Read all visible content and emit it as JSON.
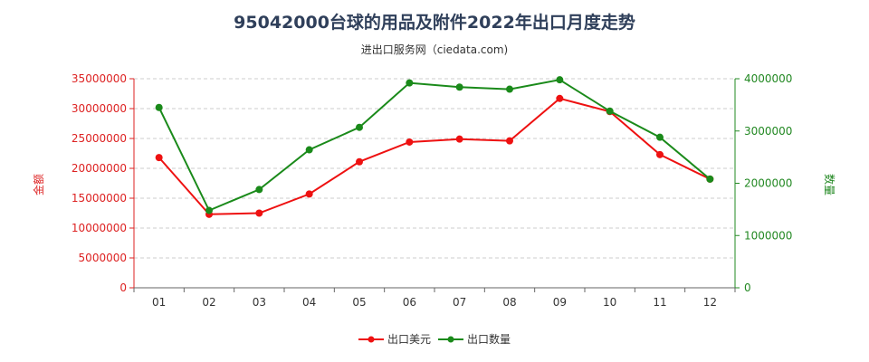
{
  "chart_data": {
    "type": "line",
    "title": "95042000台球的用品及附件2022年出口月度走势",
    "subtitle": "进出口服务网（ciedata.com)",
    "categories": [
      "01",
      "02",
      "03",
      "04",
      "05",
      "06",
      "07",
      "08",
      "09",
      "10",
      "11",
      "12"
    ],
    "y_left": {
      "label": "金额",
      "range": [
        0,
        35000000
      ],
      "ticks": [
        "0",
        "5000000",
        "10000000",
        "15000000",
        "20000000",
        "25000000",
        "30000000",
        "35000000"
      ],
      "color": "#dd2222"
    },
    "y_right": {
      "label": "数量",
      "range": [
        0,
        4000000
      ],
      "ticks": [
        "0",
        "1000000",
        "2000000",
        "3000000",
        "4000000"
      ],
      "color": "#228822"
    },
    "series": [
      {
        "name": "出口美元",
        "axis": "left",
        "color": "#ee1111",
        "values": [
          21800000,
          12300000,
          12500000,
          15700000,
          21100000,
          24400000,
          24900000,
          24600000,
          31700000,
          29500000,
          22300000,
          18200000
        ]
      },
      {
        "name": "出口数量",
        "axis": "right",
        "color": "#1a8a1a",
        "values": [
          3450000,
          1480000,
          1880000,
          2640000,
          3070000,
          3920000,
          3840000,
          3800000,
          3980000,
          3380000,
          2880000,
          2080000
        ]
      }
    ],
    "legend_position": "bottom-center",
    "grid": "horizontal dashed"
  }
}
